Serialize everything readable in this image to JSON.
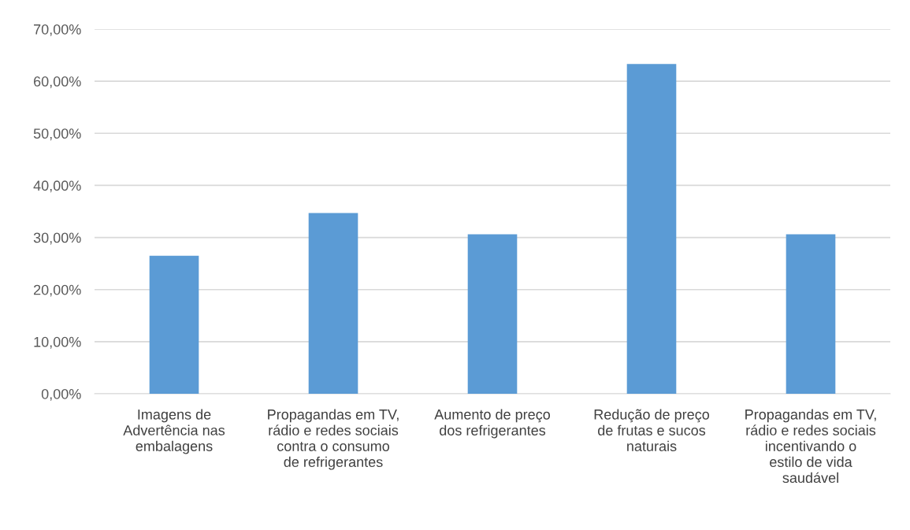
{
  "chart_data": {
    "type": "bar",
    "categories": [
      "Imagens de\nAdvertência nas\nembalagens",
      "Propagandas em TV,\nrádio e redes sociais\ncontra o consumo\nde refrigerantes",
      "Aumento de preço\ndos refrigerantes",
      "Redução de preço\nde frutas e sucos\nnaturais",
      "Propagandas em TV,\nrádio e redes sociais\nincentivando o\nestilo de vida\nsaudável"
    ],
    "values": [
      26.5,
      34.7,
      30.6,
      63.3,
      30.6
    ],
    "color": "#5b9bd5",
    "ylim": [
      0,
      70
    ],
    "yticks": [
      {
        "value": 0,
        "label": "0,00%"
      },
      {
        "value": 10,
        "label": "10,00%"
      },
      {
        "value": 20,
        "label": "20,00%"
      },
      {
        "value": 30,
        "label": "30,00%"
      },
      {
        "value": 40,
        "label": "40,00%"
      },
      {
        "value": 50,
        "label": "50,00%"
      },
      {
        "value": 60,
        "label": "60,00%"
      },
      {
        "value": 70,
        "label": "70,00%"
      }
    ],
    "grid": "y"
  }
}
